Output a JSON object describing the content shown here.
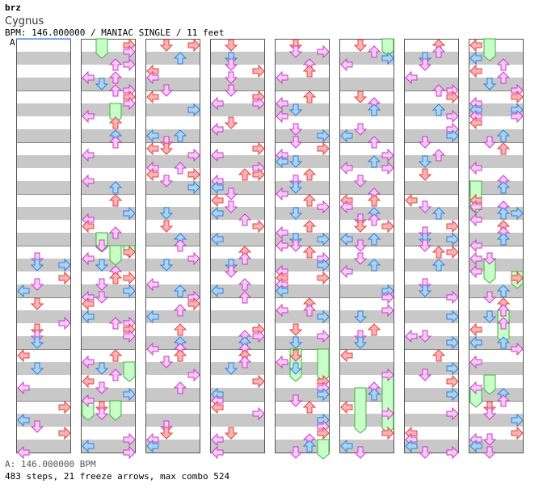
{
  "header": {
    "artist": "brz",
    "song": "Cygnus",
    "meta": "BPM: 146.000000 / MANIAC SINGLE / 11 feet",
    "segment_marker": "A"
  },
  "footer": {
    "bpm_line": "A: 146.000000 BPM",
    "summary": "483 steps, 21 freeze arrows, max combo 524"
  },
  "colors": {
    "band": "#c8c8c8",
    "border": "#555555",
    "quarter_fill": "#ffb4b4",
    "quarter_stroke": "#e04040",
    "eighth_fill": "#a8d4ff",
    "eighth_stroke": "#3080d0",
    "sixteenth_fill": "#ffc8ff",
    "sixteenth_stroke": "#c040c0",
    "freeze_fill": "#c8ffc8",
    "freeze_stroke": "#40b040",
    "segment_line": "#5aa0ff"
  },
  "chart_data": {
    "type": "step-chart",
    "lanes": [
      "left",
      "down",
      "up",
      "right"
    ],
    "measures_per_column": 8,
    "columns": 8,
    "total_measures": 64,
    "first_active_measure": 4,
    "note_seed": 20250,
    "freeze_arrows": [
      {
        "start_measure": 8.0,
        "end_measure": 8.25,
        "lane": 1
      },
      {
        "start_measure": 9.25,
        "end_measure": 9.5,
        "lane": 2
      },
      {
        "start_measure": 11.75,
        "end_measure": 12.0,
        "lane": 1
      },
      {
        "start_measure": 12.0,
        "end_measure": 12.25,
        "lane": 2
      },
      {
        "start_measure": 12.0,
        "end_measure": 12.1,
        "lane": 3
      },
      {
        "start_measure": 14.25,
        "end_measure": 14.5,
        "lane": 3
      },
      {
        "start_measure": 15.0,
        "end_measure": 15.25,
        "lane": 0
      },
      {
        "start_measure": 15.0,
        "end_measure": 15.25,
        "lane": 2
      },
      {
        "start_measure": 38.0,
        "end_measure": 38.5,
        "lane": 1
      },
      {
        "start_measure": 38.0,
        "end_measure": 38.5,
        "lane": 3
      },
      {
        "start_measure": 39.75,
        "end_measure": 40.0,
        "lane": 3
      },
      {
        "start_measure": 40.0,
        "end_measure": 40.2,
        "lane": 3
      },
      {
        "start_measure": 46.75,
        "end_measure": 47.5,
        "lane": 1
      },
      {
        "start_measure": 46.5,
        "end_measure": 47.5,
        "lane": 3
      },
      {
        "start_measure": 56.0,
        "end_measure": 56.3,
        "lane": 1
      },
      {
        "start_measure": 58.75,
        "end_measure": 59.25,
        "lane": 0
      },
      {
        "start_measure": 60.25,
        "end_measure": 60.6,
        "lane": 1
      },
      {
        "start_measure": 60.5,
        "end_measure": 60.7,
        "lane": 3
      },
      {
        "start_measure": 61.25,
        "end_measure": 61.75,
        "lane": 2
      },
      {
        "start_measure": 62.5,
        "end_measure": 62.75,
        "lane": 1
      },
      {
        "start_measure": 62.75,
        "end_measure": 63.0,
        "lane": 0
      }
    ]
  }
}
